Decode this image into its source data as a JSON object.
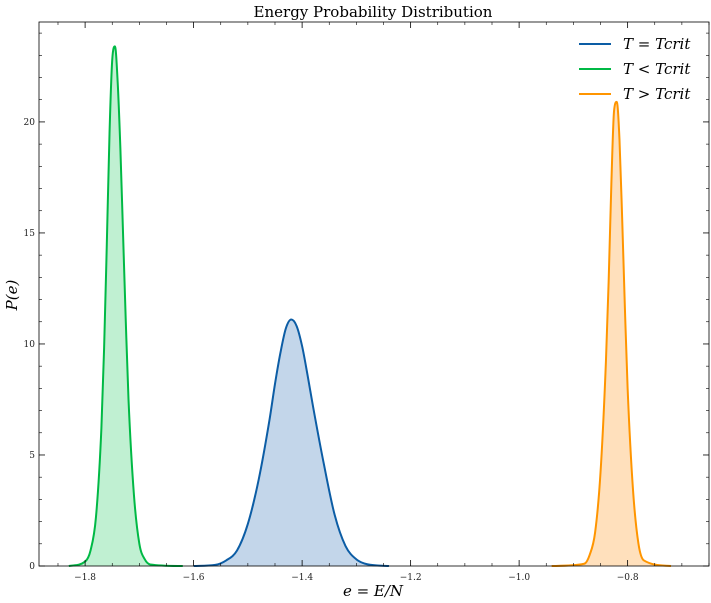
{
  "chart_data": {
    "type": "area",
    "title": "Energy Probability Distribution",
    "xlabel": "e = E/N",
    "ylabel": "P(e)",
    "xlim": [
      -1.885,
      -0.65
    ],
    "ylim": [
      0,
      24.5
    ],
    "xticks": [
      -1.8,
      -1.6,
      -1.4,
      -1.2,
      -1.0,
      -0.8
    ],
    "xtick_labels": [
      "−1.8",
      "−1.6",
      "−1.4",
      "−1.2",
      "−1.0",
      "−0.8"
    ],
    "yticks": [
      0,
      5,
      10,
      15,
      20
    ],
    "ytick_labels": [
      "0",
      "5",
      "10",
      "15",
      "20"
    ],
    "grid": false,
    "legend_position": "top-right",
    "series": [
      {
        "name": "T = Tcrit",
        "color": "#0c5da5",
        "fill": "#c3d6ea",
        "x": [
          -1.6,
          -1.56,
          -1.54,
          -1.52,
          -1.5,
          -1.48,
          -1.46,
          -1.45,
          -1.44,
          -1.43,
          -1.42,
          -1.41,
          -1.4,
          -1.39,
          -1.38,
          -1.36,
          -1.34,
          -1.32,
          -1.3,
          -1.28,
          -1.24
        ],
        "y": [
          0,
          0.05,
          0.25,
          0.7,
          1.9,
          3.9,
          6.6,
          8.2,
          9.6,
          10.7,
          11.1,
          10.8,
          9.9,
          8.6,
          7.2,
          4.6,
          2.3,
          0.9,
          0.3,
          0.08,
          0
        ]
      },
      {
        "name": "T < Tcrit",
        "color": "#00b945",
        "fill": "#c0f0d2",
        "x": [
          -1.83,
          -1.8,
          -1.79,
          -1.78,
          -1.77,
          -1.765,
          -1.76,
          -1.755,
          -1.75,
          -1.745,
          -1.74,
          -1.735,
          -1.73,
          -1.725,
          -1.72,
          -1.71,
          -1.7,
          -1.69,
          -1.68,
          -1.62
        ],
        "y": [
          0,
          0.2,
          0.7,
          2.2,
          6.2,
          9.8,
          14.5,
          19.5,
          22.8,
          23.4,
          21.8,
          18.8,
          14.9,
          11.0,
          7.5,
          3.2,
          1.0,
          0.3,
          0.07,
          0
        ]
      },
      {
        "name": "T > Tcrit",
        "color": "#ff9500",
        "fill": "#ffe0bc",
        "x": [
          -0.94,
          -0.88,
          -0.87,
          -0.86,
          -0.85,
          -0.84,
          -0.835,
          -0.83,
          -0.825,
          -0.82,
          -0.815,
          -0.81,
          -0.805,
          -0.8,
          -0.79,
          -0.78,
          -0.77,
          -0.72
        ],
        "y": [
          0,
          0.1,
          0.5,
          1.5,
          4.2,
          9.2,
          12.8,
          17.2,
          20.5,
          20.9,
          19.2,
          15.6,
          11.6,
          8.0,
          3.4,
          1.0,
          0.25,
          0
        ]
      }
    ]
  }
}
